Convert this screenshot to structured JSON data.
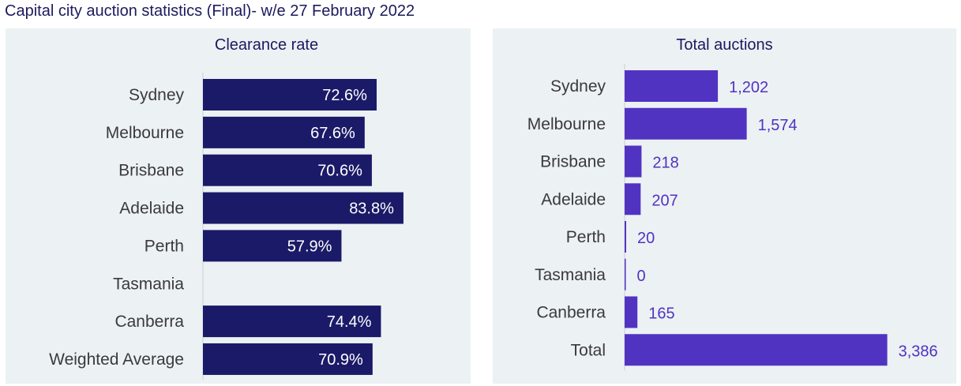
{
  "page_title": "Capital city auction statistics (Final)- w/e 27 February 2022",
  "colors": {
    "clearance_bar": "#1b1a68",
    "auctions_bar": "#5133c2",
    "panel_bg": "#ecf1f4",
    "auctions_text": "#4f33c1"
  },
  "chart_data": [
    {
      "type": "bar",
      "orientation": "horizontal",
      "title": "Clearance rate",
      "categories": [
        "Sydney",
        "Melbourne",
        "Brisbane",
        "Adelaide",
        "Perth",
        "Tasmania",
        "Canberra",
        "Weighted Average"
      ],
      "values": [
        72.6,
        67.6,
        70.6,
        83.8,
        57.9,
        null,
        74.4,
        70.9
      ],
      "data_labels": [
        "72.6%",
        "67.6%",
        "70.6%",
        "83.8%",
        "57.9%",
        "",
        "74.4%",
        "70.9%"
      ],
      "unit": "%",
      "xlim": [
        0,
        100
      ],
      "grid": false
    },
    {
      "type": "bar",
      "orientation": "horizontal",
      "title": "Total auctions",
      "categories": [
        "Sydney",
        "Melbourne",
        "Brisbane",
        "Adelaide",
        "Perth",
        "Tasmania",
        "Canberra",
        "Total"
      ],
      "values": [
        1202,
        1574,
        218,
        207,
        20,
        0,
        165,
        3386
      ],
      "data_labels": [
        "1,202",
        "1,574",
        "218",
        "207",
        "20",
        "0",
        "165",
        "3,386"
      ],
      "xlim": [
        0,
        3400
      ],
      "grid": false
    }
  ]
}
